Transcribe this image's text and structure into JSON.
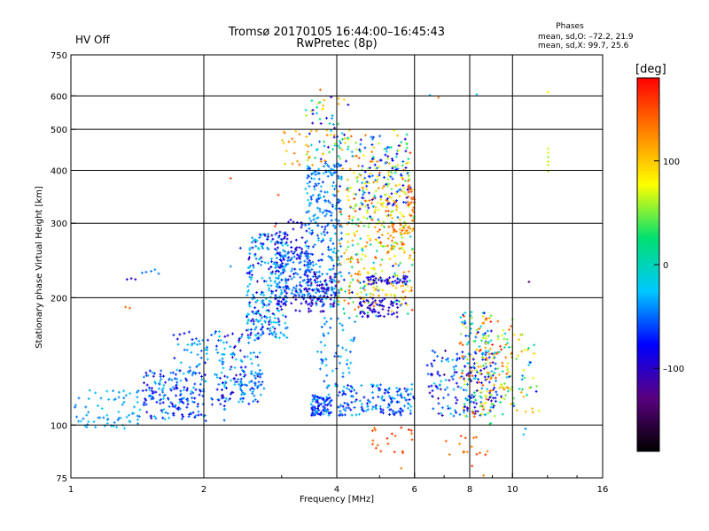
{
  "chart_data": {
    "type": "scatter",
    "title": "Tromsø 20170105 16:44:00–16:45:43",
    "subtitle": "RwPretec (8p)",
    "status_text": "HV Off",
    "status_color": "#cc0000",
    "stats": {
      "heading": "Phases",
      "line_o": "mean, sd,O: –72.2, 21.9",
      "line_x": "mean, sd,X:  99.7, 25.6"
    },
    "xlabel": "Frequency [MHz]",
    "ylabel": "Stationary phase Virtual Height [km]",
    "x_scale": "log",
    "y_scale": "log",
    "xlim": [
      1,
      16
    ],
    "ylim": [
      75,
      750
    ],
    "x_ticks": [
      1,
      2,
      4,
      6,
      8,
      10,
      16
    ],
    "x_tick_labels": [
      "1",
      "2",
      "4",
      "6",
      "8",
      "10",
      "16"
    ],
    "y_ticks": [
      75,
      100,
      200,
      300,
      400,
      500,
      600,
      750
    ],
    "y_tick_labels": [
      "75",
      "100",
      "200",
      "300",
      "400",
      "500",
      "600",
      "750"
    ],
    "grid_x": [
      2,
      4,
      6,
      8,
      10
    ],
    "grid_y": [
      100,
      200,
      300,
      400,
      500,
      600
    ],
    "grid": true,
    "colorbar": {
      "label": "[deg]",
      "min": -180,
      "max": 180,
      "ticks": [
        -100,
        0,
        100
      ],
      "tick_labels": [
        "–100",
        "0",
        "100"
      ],
      "placement": "right",
      "stops": [
        "#000000",
        "#5a0080",
        "#0000ff",
        "#00c8ff",
        "#00e070",
        "#ffff00",
        "#ff8000",
        "#ff0000"
      ]
    },
    "point_spec": "clusters [f_min MHz, f_max MHz, h_min km, h_max km, n_points, phase_min deg, phase_max deg]; plus explicit points [freq MHz, height km, phase deg]",
    "clusters": [
      [
        1.02,
        1.45,
        98,
        122,
        70,
        -50,
        -20
      ],
      [
        1.45,
        2.0,
        103,
        135,
        150,
        -100,
        -20
      ],
      [
        1.7,
        2.25,
        102,
        168,
        110,
        -90,
        -20
      ],
      [
        2.2,
        2.7,
        112,
        165,
        70,
        -50,
        -20
      ],
      [
        2.2,
        2.7,
        112,
        165,
        40,
        -110,
        -70
      ],
      [
        2.4,
        2.75,
        118,
        135,
        30,
        -60,
        -40
      ],
      [
        2.5,
        3.1,
        160,
        285,
        200,
        -50,
        -10
      ],
      [
        2.5,
        3.1,
        160,
        285,
        80,
        -110,
        -70
      ],
      [
        2.9,
        3.5,
        185,
        310,
        110,
        -100,
        -80
      ],
      [
        2.9,
        3.5,
        200,
        260,
        90,
        -60,
        -30
      ],
      [
        3.4,
        4.1,
        190,
        420,
        300,
        -70,
        -20
      ],
      [
        3.4,
        4.0,
        185,
        230,
        70,
        -115,
        -85
      ],
      [
        3.5,
        3.9,
        105,
        118,
        90,
        -90,
        -30
      ],
      [
        3.6,
        4.4,
        120,
        180,
        60,
        -60,
        -20
      ],
      [
        4.0,
        6.0,
        105,
        125,
        160,
        -90,
        -20
      ],
      [
        4.0,
        6.0,
        180,
        500,
        260,
        -80,
        160
      ],
      [
        4.2,
        6.0,
        190,
        420,
        220,
        40,
        150
      ],
      [
        4.5,
        5.5,
        180,
        200,
        60,
        -110,
        -80
      ],
      [
        4.6,
        5.8,
        215,
        225,
        50,
        -120,
        -80
      ],
      [
        6.4,
        9.2,
        105,
        150,
        160,
        -120,
        -20
      ],
      [
        7.6,
        9.0,
        100,
        185,
        140,
        -120,
        160
      ],
      [
        8.4,
        10.0,
        110,
        180,
        70,
        40,
        170
      ],
      [
        9.0,
        11.5,
        105,
        165,
        70,
        -80,
        130
      ],
      [
        3.4,
        4.3,
        420,
        610,
        60,
        -110,
        120
      ],
      [
        4.5,
        5.8,
        320,
        480,
        70,
        -100,
        -40
      ],
      [
        3.0,
        4.0,
        410,
        500,
        30,
        90,
        140
      ],
      [
        5.2,
        6.0,
        260,
        300,
        40,
        100,
        160
      ],
      [
        5.8,
        6.0,
        300,
        380,
        20,
        120,
        160
      ],
      [
        4.8,
        6.0,
        85,
        100,
        20,
        130,
        170
      ],
      [
        7.0,
        8.8,
        85,
        100,
        15,
        120,
        170
      ]
    ],
    "points": [
      [
        1.34,
        221,
        -95
      ],
      [
        1.37,
        222,
        -90
      ],
      [
        1.4,
        221,
        -100
      ],
      [
        1.45,
        229,
        -45
      ],
      [
        1.48,
        230,
        -50
      ],
      [
        1.52,
        231,
        -45
      ],
      [
        1.55,
        233,
        -40
      ],
      [
        1.58,
        228,
        -45
      ],
      [
        1.33,
        190,
        140
      ],
      [
        1.36,
        189,
        140
      ],
      [
        12.05,
        412,
        60
      ],
      [
        12.05,
        420,
        65
      ],
      [
        12.05,
        430,
        60
      ],
      [
        12.05,
        440,
        70
      ],
      [
        12.05,
        450,
        65
      ],
      [
        12.05,
        398,
        60
      ],
      [
        12.05,
        612,
        80
      ],
      [
        6.5,
        602,
        -20
      ],
      [
        6.8,
        595,
        130
      ],
      [
        8.3,
        605,
        -20
      ],
      [
        2.3,
        383,
        150
      ],
      [
        2.9,
        295,
        150
      ],
      [
        2.95,
        350,
        150
      ],
      [
        10.9,
        218,
        -130
      ],
      [
        10.6,
        95,
        -30
      ],
      [
        10.7,
        98,
        -40
      ],
      [
        8.6,
        76,
        130
      ],
      [
        8.1,
        80,
        160
      ],
      [
        5.6,
        79,
        130
      ],
      [
        3.67,
        620,
        140
      ],
      [
        2.42,
        262,
        -70
      ],
      [
        2.3,
        237,
        -40
      ]
    ],
    "seed": 20170105
  }
}
